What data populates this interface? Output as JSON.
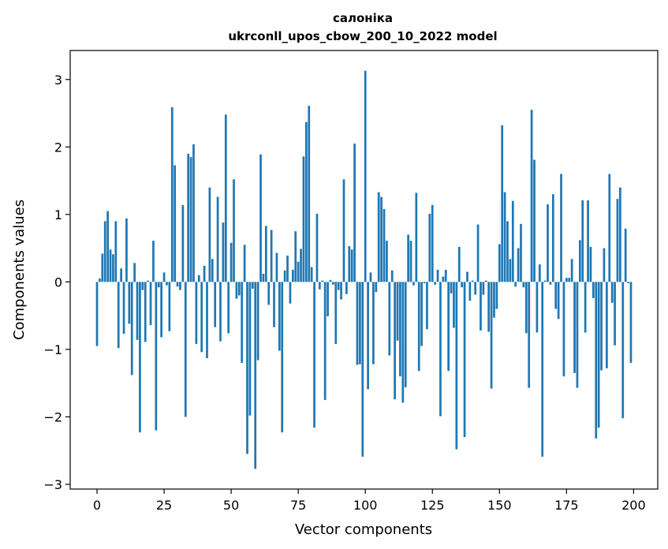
{
  "chart_data": {
    "type": "bar",
    "title_line1": "салоніка",
    "title_line2": "ukrconll_upos_cbow_200_10_2022 model",
    "xlabel": "Vector components",
    "ylabel": "Components values",
    "xlim": [
      -10,
      209
    ],
    "ylim": [
      -3.07,
      3.43
    ],
    "xticks": [
      0,
      25,
      50,
      75,
      100,
      125,
      150,
      175,
      200
    ],
    "xtick_labels": [
      "0",
      "25",
      "50",
      "75",
      "100",
      "125",
      "150",
      "175",
      "200"
    ],
    "yticks": [
      -3,
      -2,
      -1,
      0,
      1,
      2,
      3
    ],
    "ytick_labels": [
      "−3",
      "−2",
      "−1",
      "0",
      "1",
      "2",
      "3"
    ],
    "grid": false,
    "bar_color": "#1f77b4",
    "x": [
      0,
      1,
      2,
      3,
      4,
      5,
      6,
      7,
      8,
      9,
      10,
      11,
      12,
      13,
      14,
      15,
      16,
      17,
      18,
      19,
      20,
      21,
      22,
      23,
      24,
      25,
      26,
      27,
      28,
      29,
      30,
      31,
      32,
      33,
      34,
      35,
      36,
      37,
      38,
      39,
      40,
      41,
      42,
      43,
      44,
      45,
      46,
      47,
      48,
      49,
      50,
      51,
      52,
      53,
      54,
      55,
      56,
      57,
      58,
      59,
      60,
      61,
      62,
      63,
      64,
      65,
      66,
      67,
      68,
      69,
      70,
      71,
      72,
      73,
      74,
      75,
      76,
      77,
      78,
      79,
      80,
      81,
      82,
      83,
      84,
      85,
      86,
      87,
      88,
      89,
      90,
      91,
      92,
      93,
      94,
      95,
      96,
      97,
      98,
      99,
      100,
      101,
      102,
      103,
      104,
      105,
      106,
      107,
      108,
      109,
      110,
      111,
      112,
      113,
      114,
      115,
      116,
      117,
      118,
      119,
      120,
      121,
      122,
      123,
      124,
      125,
      126,
      127,
      128,
      129,
      130,
      131,
      132,
      133,
      134,
      135,
      136,
      137,
      138,
      139,
      140,
      141,
      142,
      143,
      144,
      145,
      146,
      147,
      148,
      149,
      150,
      151,
      152,
      153,
      154,
      155,
      156,
      157,
      158,
      159,
      160,
      161,
      162,
      163,
      164,
      165,
      166,
      167,
      168,
      169,
      170,
      171,
      172,
      173,
      174,
      175,
      176,
      177,
      178,
      179,
      180,
      181,
      182,
      183,
      184,
      185,
      186,
      187,
      188,
      189,
      190,
      191,
      192,
      193,
      194,
      195,
      196,
      197,
      198,
      199
    ],
    "values": [
      -0.95,
      0.05,
      0.42,
      0.9,
      1.05,
      0.48,
      0.41,
      0.9,
      -0.98,
      0.2,
      -0.77,
      0.94,
      -0.62,
      -1.38,
      0.28,
      -0.86,
      -2.23,
      -0.12,
      -0.89,
      0.02,
      -0.64,
      0.61,
      -2.2,
      -0.08,
      -0.82,
      0.14,
      -0.05,
      -0.73,
      2.59,
      1.73,
      -0.07,
      -0.12,
      1.14,
      -2.0,
      1.9,
      1.85,
      2.04,
      -0.92,
      0.1,
      -1.04,
      0.24,
      -1.13,
      1.4,
      0.34,
      -0.67,
      1.26,
      -0.88,
      0.88,
      2.48,
      -0.76,
      0.58,
      1.52,
      -0.25,
      -0.2,
      -1.2,
      0.55,
      -2.55,
      -1.98,
      -0.1,
      -2.77,
      -1.16,
      1.89,
      0.12,
      0.83,
      -0.34,
      0.77,
      -0.67,
      0.43,
      -1.02,
      -2.23,
      0.17,
      0.39,
      -0.32,
      0.18,
      0.75,
      0.3,
      0.49,
      1.86,
      2.37,
      2.61,
      0.22,
      -2.16,
      1.01,
      -0.11,
      0.02,
      -1.75,
      -0.51,
      0.03,
      -0.04,
      -0.92,
      -0.12,
      -0.26,
      1.52,
      -0.18,
      0.53,
      0.48,
      2.05,
      -1.23,
      -1.22,
      -2.59,
      3.13,
      -1.59,
      0.14,
      -1.22,
      -0.15,
      1.33,
      1.26,
      1.08,
      0.61,
      -1.09,
      0.17,
      -1.74,
      -0.87,
      -1.4,
      -1.79,
      -1.56,
      0.7,
      0.61,
      -0.05,
      1.32,
      -1.32,
      -0.95,
      -0.02,
      -0.7,
      1.01,
      1.14,
      -0.04,
      0.18,
      -1.99,
      0.08,
      0.18,
      -1.32,
      -0.17,
      -0.68,
      -2.48,
      0.52,
      -0.08,
      -2.3,
      0.15,
      -0.28,
      0.02,
      -0.19,
      0.85,
      -0.72,
      -0.19,
      0.02,
      -0.74,
      -1.58,
      -0.53,
      -0.4,
      0.56,
      2.32,
      1.33,
      0.9,
      0.34,
      1.2,
      -0.07,
      0.5,
      0.86,
      -0.08,
      -0.76,
      -1.57,
      2.55,
      1.81,
      -0.75,
      0.26,
      -2.59,
      0.02,
      1.15,
      -0.04,
      1.3,
      -0.4,
      -0.55,
      1.6,
      -1.4,
      0.06,
      0.06,
      0.34,
      -1.35,
      -1.57,
      0.62,
      1.21,
      -0.75,
      1.21,
      0.52,
      -0.24,
      -2.32,
      -2.16,
      -1.31,
      0.5,
      -1.28,
      1.6,
      -0.31,
      -0.94,
      1.23,
      1.4,
      -2.02,
      0.79,
      -0.02,
      -1.2
    ]
  }
}
